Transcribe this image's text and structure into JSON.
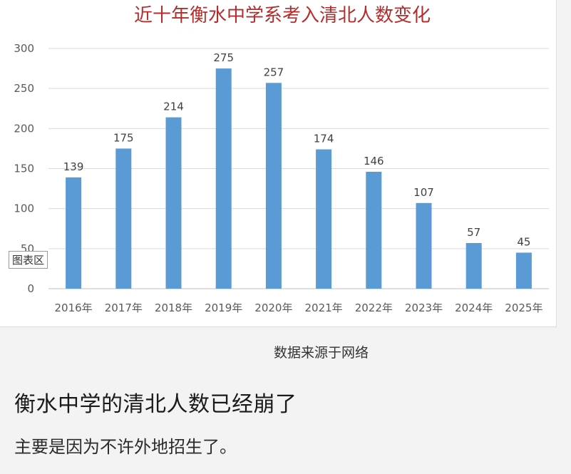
{
  "colors": {
    "bar": "#5b9bd5",
    "title": "#b32d2d",
    "grid": "#d9d9d9"
  },
  "chart_data": {
    "type": "bar",
    "title": "近十年衡水中学系考入清北人数变化",
    "xlabel": "",
    "ylabel": "",
    "categories": [
      "2016年",
      "2017年",
      "2018年",
      "2019年",
      "2020年",
      "2021年",
      "2022年",
      "2023年",
      "2024年",
      "2025年"
    ],
    "values": [
      139,
      175,
      214,
      275,
      257,
      174,
      146,
      107,
      57,
      45
    ],
    "ylim": [
      0,
      300
    ],
    "yticks": [
      0,
      50,
      100,
      150,
      200,
      250,
      300
    ],
    "grid": true,
    "legend": "none",
    "data_labels": true
  },
  "chart_badge": "图表区",
  "source_note": "数据来源于网络",
  "headline": "衡水中学的清北人数已经崩了",
  "subline": "主要是因为不许外地招生了。"
}
